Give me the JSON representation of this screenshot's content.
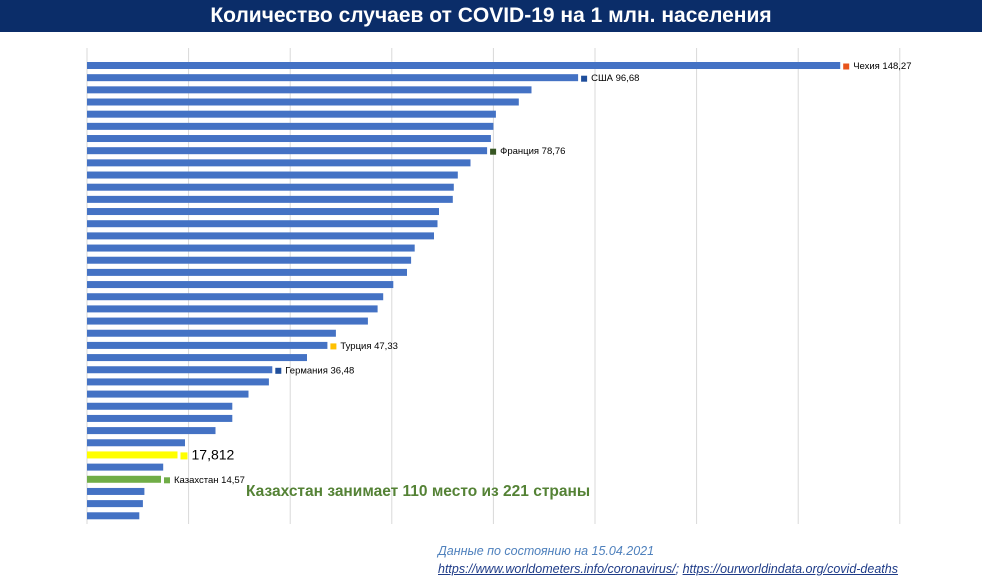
{
  "header": {
    "title": "Количество случаев от COVID-19 на 1 млн. населения"
  },
  "footnote": {
    "date_line": "Данные по состоянию на 15.04.2021",
    "source_1": "https://www.worldometers.info/coronavirus/",
    "separator": ";",
    "source_2": "https://ourworldindata.org/covid-deaths"
  },
  "colors": {
    "header_bg": "#0b2d69",
    "default_bar": "#4472c4",
    "highlight_bar": "#ffff00",
    "kazakhstan_bar": "#70ad47",
    "annotation_green": "#548235",
    "czechia_marker": "#e8541c",
    "france_marker": "#375623",
    "turkey_marker": "#ffc000"
  },
  "chart_data": {
    "type": "bar",
    "orientation": "horizontal",
    "title": "Количество случаев от COVID-19 на 1 млн. населения",
    "xlim": [
      0,
      160
    ],
    "gridlines": true,
    "values": [
      148.27,
      96.68,
      87.5,
      85.0,
      80.5,
      80.0,
      79.5,
      78.76,
      75.5,
      73.0,
      72.2,
      72.0,
      69.3,
      69.0,
      68.3,
      64.5,
      63.8,
      63.0,
      60.3,
      58.3,
      57.2,
      55.3,
      49.0,
      47.33,
      43.3,
      36.48,
      35.8,
      31.8,
      28.6,
      28.6,
      25.3,
      19.3,
      17.812,
      15.0,
      14.57,
      11.3,
      11.0,
      10.3
    ],
    "bar_colors": [
      "#4472c4",
      "#4472c4",
      "#4472c4",
      "#4472c4",
      "#4472c4",
      "#4472c4",
      "#4472c4",
      "#4472c4",
      "#4472c4",
      "#4472c4",
      "#4472c4",
      "#4472c4",
      "#4472c4",
      "#4472c4",
      "#4472c4",
      "#4472c4",
      "#4472c4",
      "#4472c4",
      "#4472c4",
      "#4472c4",
      "#4472c4",
      "#4472c4",
      "#4472c4",
      "#4472c4",
      "#4472c4",
      "#4472c4",
      "#4472c4",
      "#4472c4",
      "#4472c4",
      "#4472c4",
      "#4472c4",
      "#4472c4",
      "#ffff00",
      "#4472c4",
      "#70ad47",
      "#4472c4",
      "#4472c4",
      "#4472c4"
    ],
    "data_labels": [
      {
        "index": 0,
        "text": "Чехия 148,27",
        "marker_color": "#e8541c"
      },
      {
        "index": 1,
        "text": "США 96,68",
        "marker_color": "#1f4e9b"
      },
      {
        "index": 7,
        "text": "Франция 78,76",
        "marker_color": "#375623"
      },
      {
        "index": 23,
        "text": "Турция 47,33",
        "marker_color": "#ffc000"
      },
      {
        "index": 25,
        "text": "Германия 36,48",
        "marker_color": "#1f4e9b"
      },
      {
        "index": 32,
        "text": "17,812",
        "marker_color": "#ffff00",
        "large": true
      },
      {
        "index": 34,
        "text": "Казахстан 14,57",
        "marker_color": "#70ad47"
      }
    ],
    "annotation": "Казахстан занимает 110 место из 221 страны"
  }
}
